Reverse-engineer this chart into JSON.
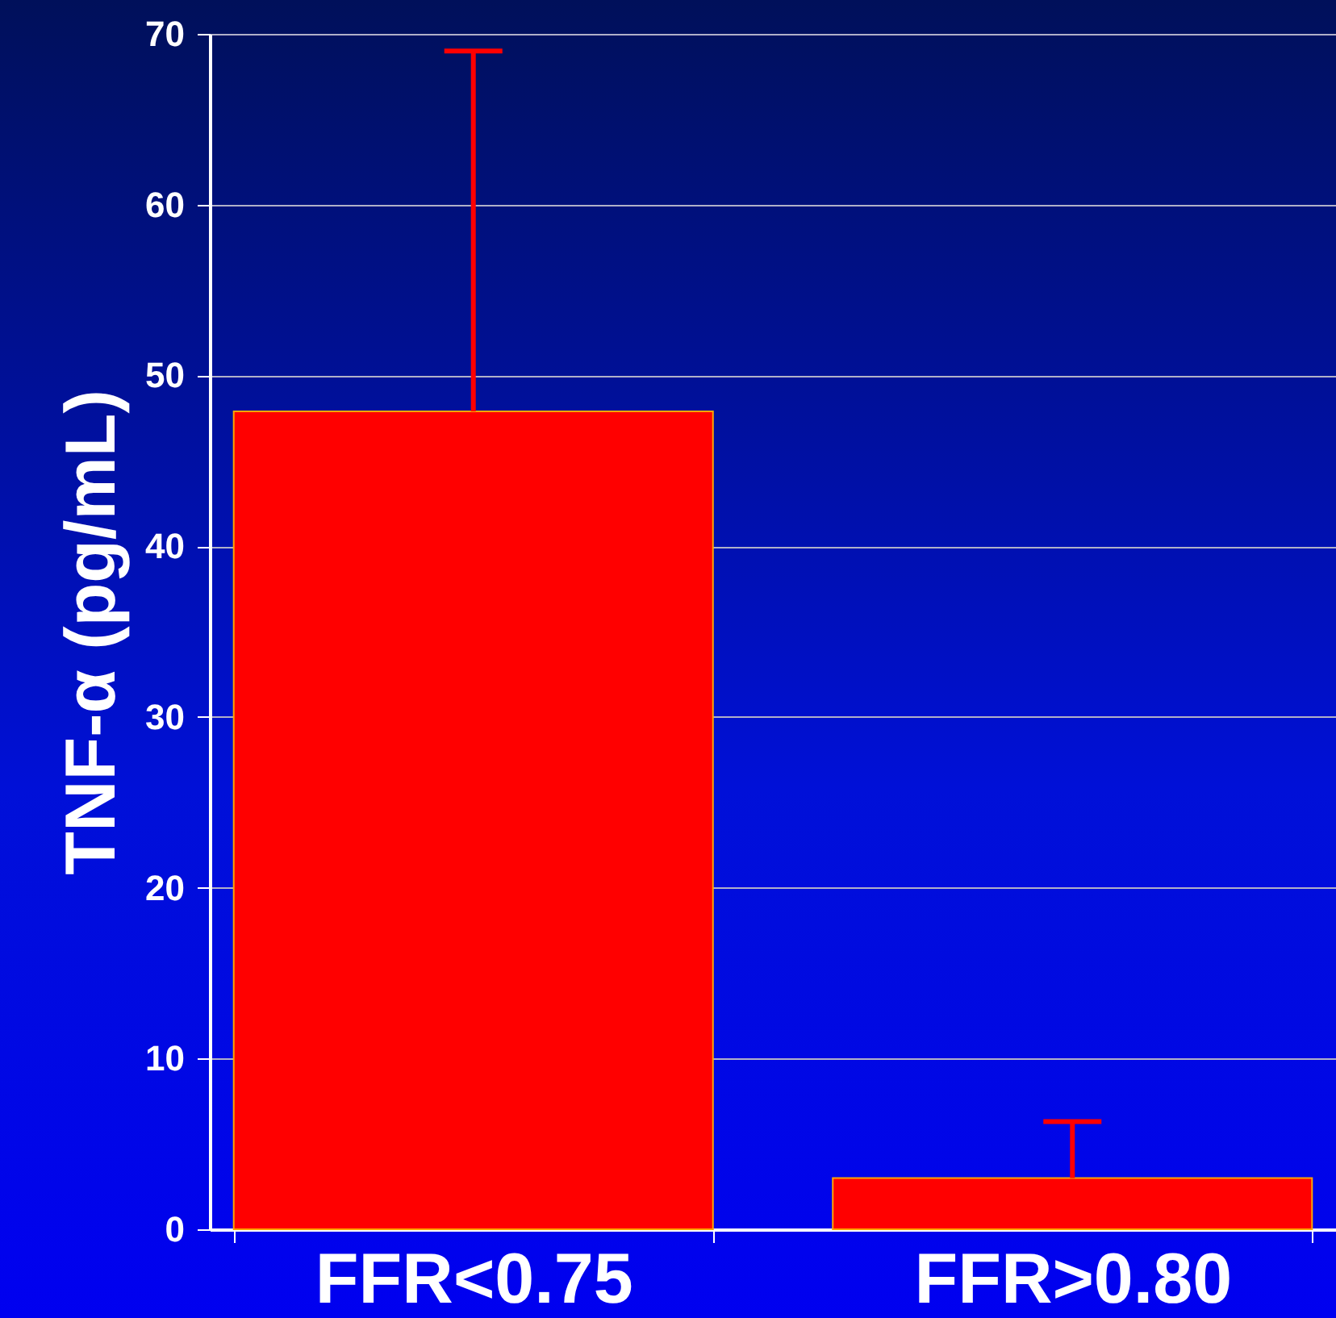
{
  "chart_data": {
    "type": "bar",
    "ylabel": "TNF-α (pg/mL)",
    "categories": [
      "FFR<0.75",
      "FFR>0.80"
    ],
    "values": [
      47.9,
      3.0
    ],
    "errors": [
      [
        47.9,
        69.0
      ],
      [
        3.0,
        6.3
      ]
    ],
    "color": "#ff0000",
    "ylim": [
      0,
      70
    ],
    "yticks": [
      0,
      10,
      20,
      30,
      40,
      50,
      60,
      70
    ],
    "grid": "y"
  }
}
